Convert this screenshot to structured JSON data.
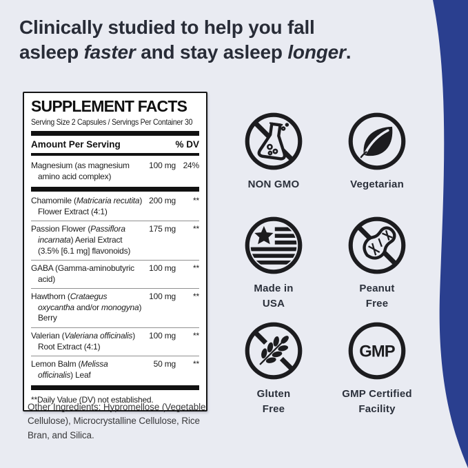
{
  "colors": {
    "background": "#e9ebf2",
    "accent_blue": "#2a3f8f",
    "headline_text": "#282c37",
    "icon_black": "#1c1c1f",
    "label_text": "#2b303b",
    "panel_border": "#151515"
  },
  "headline": {
    "line1": "Clinically studied to help you fall",
    "line2_start": "asleep ",
    "line2_em1": "faster",
    "line2_mid": " and stay asleep ",
    "line2_em2": "longer",
    "line2_end": "."
  },
  "supplement_facts": {
    "title": "SUPPLEMENT FACTS",
    "serving_line": "Serving Size 2 Capsules / Servings Per Container 30",
    "columns": {
      "amount_label": "Amount Per Serving",
      "dv_label": "% DV"
    },
    "rows": [
      {
        "name": [
          {
            "t": "Magnesium (as magnesium amino acid complex)"
          }
        ],
        "amount": "100 mg",
        "dv": "24%",
        "divider_after": "thick"
      },
      {
        "name": [
          {
            "t": "Chamomile ("
          },
          {
            "t": "Matricaria recutita",
            "i": true
          },
          {
            "t": ") Flower Extract (4:1)"
          }
        ],
        "amount": "200 mg",
        "dv": "**",
        "divider_after": "thin"
      },
      {
        "name": [
          {
            "t": "Passion Flower ("
          },
          {
            "t": "Passiflora incarnata",
            "i": true
          },
          {
            "t": ") Aerial Extract (3.5% [6.1 mg] flavonoids)"
          }
        ],
        "amount": "175 mg",
        "dv": "**",
        "divider_after": "thin"
      },
      {
        "name": [
          {
            "t": "GABA (Gamma-aminobutyric acid)"
          }
        ],
        "amount": "100 mg",
        "dv": "**",
        "divider_after": "thin"
      },
      {
        "name": [
          {
            "t": "Hawthorn ("
          },
          {
            "t": "Crataegus oxycantha",
            "i": true
          },
          {
            "t": " and/or "
          },
          {
            "t": "monogyna",
            "i": true
          },
          {
            "t": ") Berry"
          }
        ],
        "amount": "100 mg",
        "dv": "**",
        "divider_after": "thin"
      },
      {
        "name": [
          {
            "t": "Valerian ("
          },
          {
            "t": "Valeriana officinalis",
            "i": true
          },
          {
            "t": ") Root Extract (4:1)"
          }
        ],
        "amount": "100 mg",
        "dv": "**",
        "divider_after": "thin"
      },
      {
        "name": [
          {
            "t": "Lemon Balm ("
          },
          {
            "t": "Melissa officinalis",
            "i": true
          },
          {
            "t": ") Leaf"
          }
        ],
        "amount": "50 mg",
        "dv": "**",
        "divider_after": "thick"
      }
    ],
    "footnote": "**Daily Value (DV) not established."
  },
  "other_ingredients": "Other Ingredients: Hypromellose (Vegetable Cellulose), Microcrystalline Cellulose, Rice Bran, and Silica.",
  "badges": [
    {
      "label": "NON GMO",
      "icon": "no-gmo-flask"
    },
    {
      "label": "Vegetarian",
      "icon": "leaf"
    },
    {
      "label": "Made in\nUSA",
      "icon": "usa-flag"
    },
    {
      "label": "Peanut\nFree",
      "icon": "no-peanut"
    },
    {
      "label": "Gluten\nFree",
      "icon": "no-wheat"
    },
    {
      "label": "GMP Certified\nFacility",
      "icon": "gmp-circle",
      "icon_text": "GMP"
    }
  ]
}
